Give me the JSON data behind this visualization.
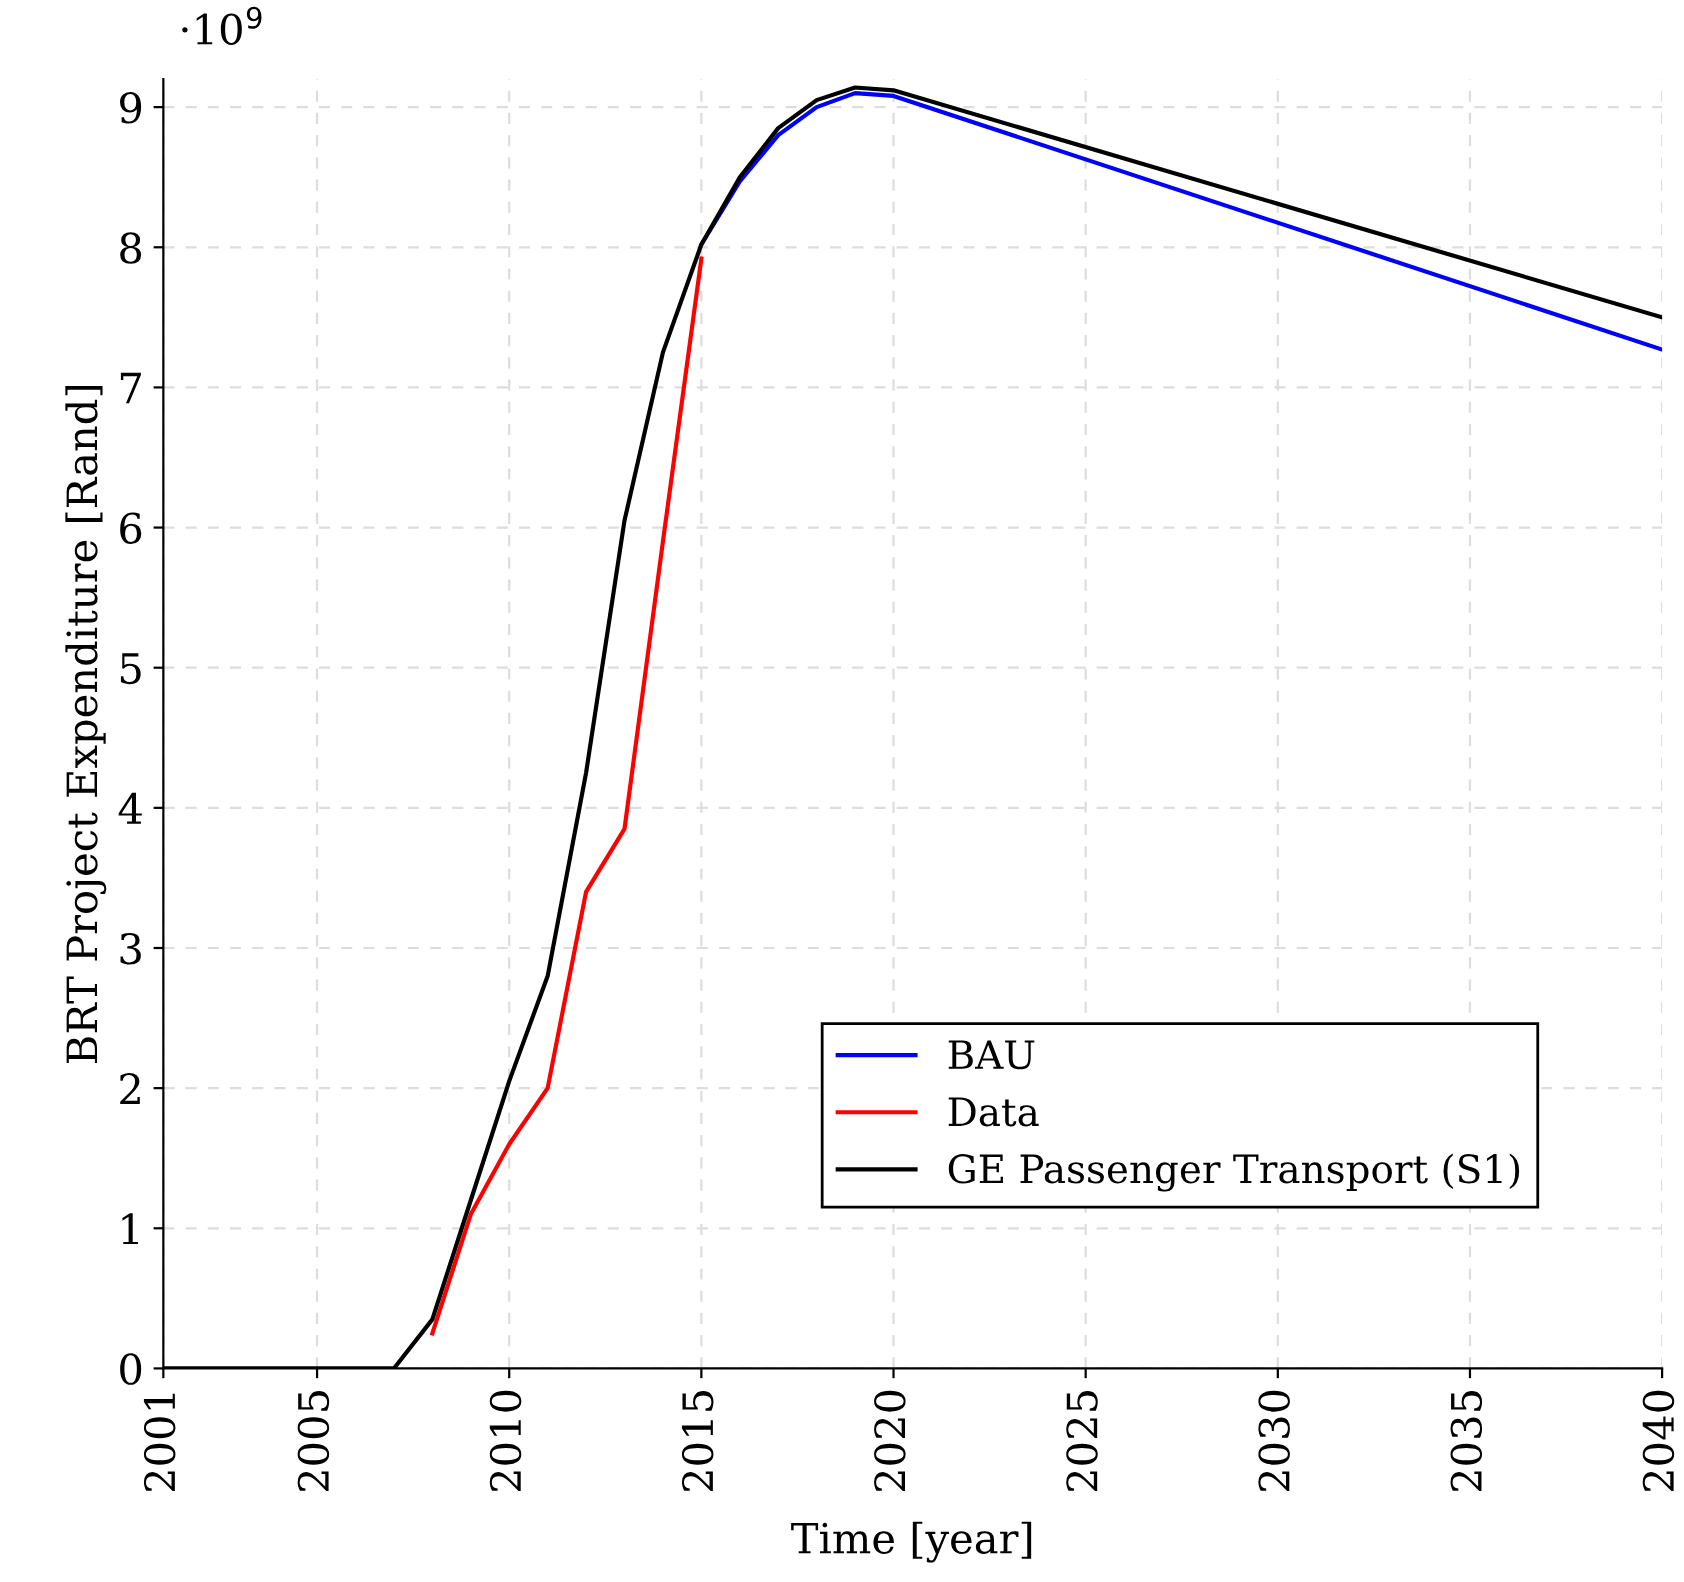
{
  "chart_data": {
    "type": "line",
    "xlabel": "Time [year]",
    "ylabel": "BRT Project Expenditure [Rand]",
    "annotations": [
      "·10$^{9}$"
    ],
    "xlim": [
      2001,
      2040
    ],
    "xticks": [
      2001,
      2005,
      2010,
      2015,
      2020,
      2025,
      2030,
      2035,
      2040
    ],
    "ylim": [
      0,
      9.2
    ],
    "yticks": [
      0,
      1,
      2,
      3,
      4,
      5,
      6,
      7,
      8,
      9
    ],
    "grid": true,
    "legend": "bottom right",
    "marker": "none",
    "line_style": "solid",
    "series": [
      {
        "name": "BAU",
        "color": "#0000ff",
        "x": [
          2015,
          2016,
          2017,
          2018,
          2019,
          2020,
          2040
        ],
        "values": [
          8.02,
          8.47,
          8.8,
          9.0,
          9.1,
          9.08,
          7.27
        ]
      },
      {
        "name": "Data",
        "color": "#ff0000",
        "x": [
          2008,
          2009,
          2010,
          2011,
          2012,
          2013,
          2014,
          2015
        ],
        "values": [
          0.25,
          1.1,
          1.6,
          2.0,
          3.4,
          3.85,
          5.9,
          7.92
        ]
      },
      {
        "name": "GE Passenger Transport (S1)",
        "color": "#000000",
        "x": [
          2001,
          2002,
          2003,
          2004,
          2005,
          2006,
          2007,
          2008,
          2009,
          2010,
          2011,
          2012,
          2013,
          2014,
          2015,
          2016,
          2017,
          2018,
          2019,
          2020,
          2040
        ],
        "values": [
          0,
          0,
          0,
          0,
          0,
          0,
          0,
          0.35,
          1.2,
          2.05,
          2.8,
          4.25,
          6.05,
          7.25,
          8.02,
          8.5,
          8.85,
          9.05,
          9.14,
          9.12,
          7.5
        ]
      }
    ]
  }
}
